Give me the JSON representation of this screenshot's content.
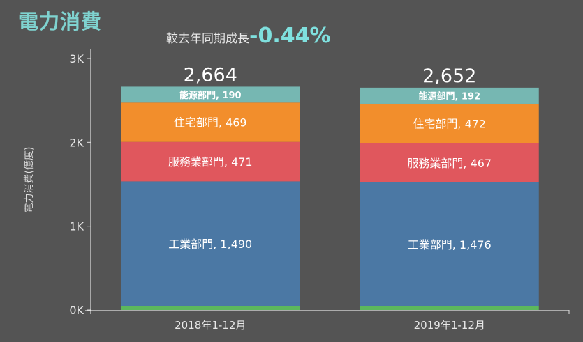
{
  "chart_data": {
    "type": "bar",
    "stacked": true,
    "title": "電力消費",
    "subtitle_label": "較去年同期成長",
    "subtitle_value": "-0.44%",
    "ylabel": "電力消費(億度)",
    "xlabel": "",
    "ylim": [
      0,
      3000
    ],
    "yticks": [
      0,
      1000,
      2000,
      3000
    ],
    "ytick_labels": [
      "0K",
      "1K",
      "2K",
      "3K"
    ],
    "categories": [
      "2018年1-12月",
      "2019年1-12月"
    ],
    "totals": [
      2664,
      2652
    ],
    "total_labels": [
      "2,664",
      "2,652"
    ],
    "series": [
      {
        "name": "",
        "color": "#5cb85c",
        "values": [
          44,
          45
        ],
        "labels": [
          "",
          ""
        ]
      },
      {
        "name": "工業部門",
        "color": "#4b78a4",
        "values": [
          1490,
          1476
        ],
        "labels": [
          "工業部門, 1,490",
          "工業部門, 1,476"
        ]
      },
      {
        "name": "服務業部門",
        "color": "#e0575d",
        "values": [
          471,
          467
        ],
        "labels": [
          "服務業部門, 471",
          "服務業部門, 467"
        ]
      },
      {
        "name": "住宅部門",
        "color": "#f28e2c",
        "values": [
          469,
          472
        ],
        "labels": [
          "住宅部門, 469",
          "住宅部門, 472"
        ]
      },
      {
        "name": "能源部門",
        "color": "#76b7b2",
        "values": [
          190,
          192
        ],
        "labels": [
          "能源部門, 190",
          "能源部門, 192"
        ]
      }
    ],
    "grid": false,
    "legend": "none"
  }
}
